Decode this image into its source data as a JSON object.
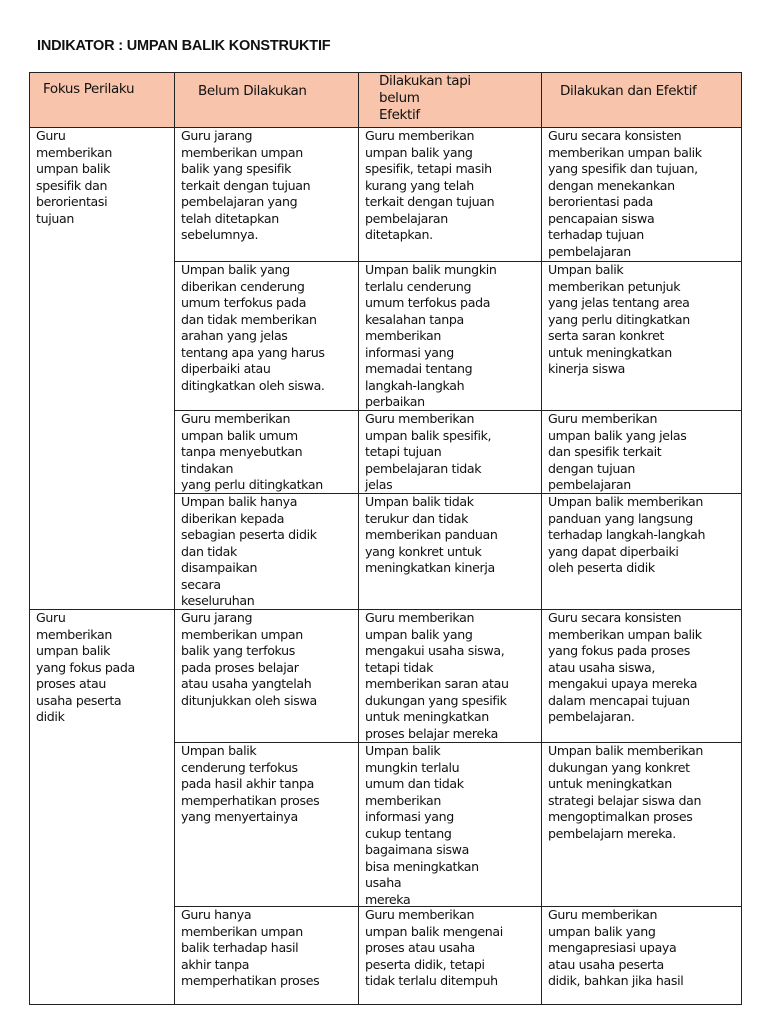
{
  "title": "INDIKATOR : UMPAN BALIK KONSTRUKTIF",
  "header_color": "#f8c5ac",
  "headers": [
    "Fokus Perilaku",
    "Belum Dilakukan",
    "Dilakukan tapi\n     belum\n     Efektif",
    "Dilakukan dan Efektif"
  ],
  "groups": [
    {
      "focus": "Guru\nmemberikan\numpan balik\nspesifik dan\nberorientasi\ntujuan",
      "rows": [
        [
          "Guru jarang\nmemberikan umpan\nbalik yang spesifik\nterkait dengan tujuan\npembelajaran yang\ntelah ditetapkan\nsebelumnya.",
          "Guru memberikan\numpan balik yang\nspesifik, tetapi masih\nkurang yang telah\nterkait dengan tujuan\npembelajaran\nditetapkan.",
          "Guru secara konsisten\nmemberikan umpan balik\nyang spesifik dan tujuan,\ndengan menekankan\nberorientasi pada\npencapaian siswa\nterhadap tujuan\npembelajaran"
        ],
        [
          "Umpan balik yang\ndiberikan cenderung\numum terfokus pada\ndan tidak memberikan\narahan yang jelas\ntentang apa yang harus\ndiperbaiki atau\nditingkatkan oleh siswa.",
          "Umpan balik mungkin\nterlalu cenderung\numum terfokus pada\nkesalahan tanpa\nmemberikan\ninformasi yang\nmemadai tentang\nlangkah-langkah\nperbaikan",
          "Umpan balik\nmemberikan petunjuk\nyang jelas tentang area\nyang perlu ditingkatkan\nserta saran konkret\nuntuk meningkatkan\nkinerja siswa"
        ],
        [
          "Guru memberikan\numpan balik umum\ntanpa menyebutkan\ntindakan\nyang perlu ditingkatkan",
          "Guru memberikan\numpan balik spesifik,\ntetapi tujuan\npembelajaran tidak\njelas",
          "Guru memberikan\numpan balik yang jelas\ndan spesifik terkait\ndengan tujuan\npembelajaran"
        ],
        [
          "Umpan balik hanya\ndiberikan kepada\nsebagian peserta didik\ndan tidak\ndisampaikan\nsecara\nkeseluruhan",
          "Umpan balik tidak\nterukur dan tidak\nmemberikan panduan\nyang konkret untuk\nmeningkatkan kinerja",
          "Umpan balik memberikan\npanduan yang langsung\nterhadap langkah-langkah\nyang dapat diperbaiki\noleh peserta didik"
        ]
      ]
    },
    {
      "focus": "Guru\nmemberikan\numpan balik\nyang fokus pada\nproses atau\nusaha peserta\ndidik",
      "rows": [
        [
          "Guru jarang\nmemberikan umpan\nbalik yang terfokus\npada proses belajar\natau usaha yangtelah\nditunjukkan oleh siswa",
          "Guru memberikan\numpan balik yang\nmengakui usaha siswa,\ntetapi tidak\nmemberikan saran atau\ndukungan yang spesifik\nuntuk meningkatkan\nproses belajar mereka",
          "Guru secara konsisten\nmemberikan umpan balik\nyang fokus pada proses\natau usaha siswa,\nmengakui upaya mereka\ndalam mencapai tujuan\npembelajaran."
        ],
        [
          "Umpan balik\ncenderung terfokus\npada hasil akhir tanpa\nmemperhatikan proses\nyang menyertainya",
          "Umpan balik\nmungkin terlalu\numum dan tidak\nmemberikan\ninformasi yang\ncukup tentang\nbagaimana siswa\nbisa meningkatkan\nusaha\nmereka",
          "Umpan balik memberikan\ndukungan yang konkret\nuntuk meningkatkan\nstrategi belajar siswa dan\nmengoptimalkan proses\npembelajarn mereka."
        ],
        [
          "Guru hanya\nmemberikan umpan\nbalik terhadap hasil\nakhir tanpa\nmemperhatikan proses",
          "Guru memberikan\numpan balik mengenai\nproses atau usaha\npeserta didik, tetapi\ntidak terlalu ditempuh",
          "Guru memberikan\numpan balik yang\nmengapresiasi upaya\natau usaha peserta\ndidik, bahkan jika hasil"
        ]
      ]
    }
  ]
}
